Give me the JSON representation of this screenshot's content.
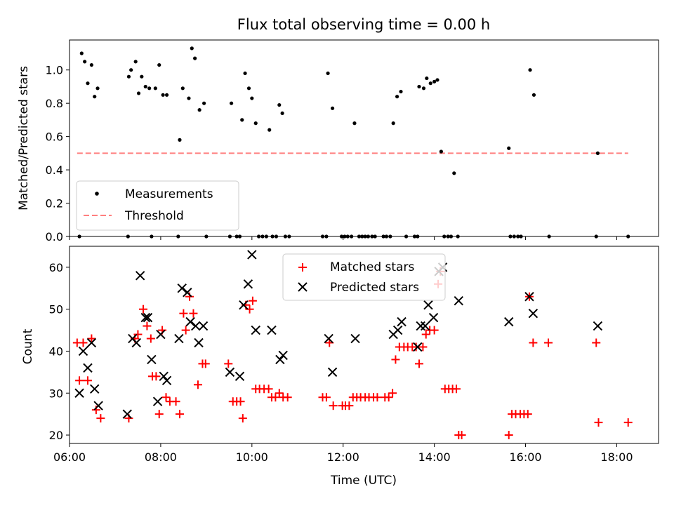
{
  "figure": {
    "title": "Flux total observing time = 0.00 h",
    "xlabel": "Time (UTC)"
  },
  "colors": {
    "measurement": "#000000",
    "threshold": "#ff7f7f",
    "matched": "#ff0000",
    "predicted": "#000000"
  },
  "chart_data": [
    {
      "type": "scatter",
      "panel": "top",
      "ylabel": "Matched/Predicted stars",
      "xlim": [
        "06:00",
        "18:55"
      ],
      "ylim": [
        0,
        1.18
      ],
      "xticks": [
        "06:00",
        "08:00",
        "10:00",
        "12:00",
        "14:00",
        "16:00",
        "18:00"
      ],
      "yticks": [
        0.0,
        0.2,
        0.4,
        0.6,
        0.8,
        1.0
      ],
      "ytick_labels": [
        "0.0",
        "0.2",
        "0.4",
        "0.6",
        "0.8",
        "1.0"
      ],
      "legend": {
        "placement": "lower-left",
        "entries": [
          "Measurements",
          "Threshold"
        ]
      },
      "threshold": {
        "name": "Threshold",
        "y": 0.5,
        "x": [
          "06:10",
          "18:15"
        ]
      },
      "series": [
        {
          "name": "Measurements",
          "points": [
            [
              "06:13",
              0.0
            ],
            [
              "06:16",
              1.1
            ],
            [
              "06:20",
              1.05
            ],
            [
              "06:24",
              0.92
            ],
            [
              "06:29",
              1.03
            ],
            [
              "06:33",
              0.84
            ],
            [
              "06:37",
              0.89
            ],
            [
              "07:17",
              0.0
            ],
            [
              "07:18",
              0.96
            ],
            [
              "07:21",
              1.0
            ],
            [
              "07:27",
              1.05
            ],
            [
              "07:31",
              0.86
            ],
            [
              "07:35",
              0.96
            ],
            [
              "07:40",
              0.9
            ],
            [
              "07:45",
              0.89
            ],
            [
              "07:48",
              0.0
            ],
            [
              "07:53",
              0.89
            ],
            [
              "07:58",
              1.03
            ],
            [
              "08:03",
              0.85
            ],
            [
              "08:08",
              0.85
            ],
            [
              "08:23",
              0.0
            ],
            [
              "08:25",
              0.58
            ],
            [
              "08:29",
              0.89
            ],
            [
              "08:37",
              0.83
            ],
            [
              "08:41",
              1.13
            ],
            [
              "08:45",
              1.07
            ],
            [
              "08:51",
              0.76
            ],
            [
              "08:57",
              0.8
            ],
            [
              "09:00",
              0.0
            ],
            [
              "09:31",
              0.0
            ],
            [
              "09:33",
              0.8
            ],
            [
              "09:40",
              0.0
            ],
            [
              "09:44",
              0.0
            ],
            [
              "09:47",
              0.7
            ],
            [
              "09:51",
              0.98
            ],
            [
              "09:56",
              0.89
            ],
            [
              "10:00",
              0.83
            ],
            [
              "10:05",
              0.68
            ],
            [
              "10:09",
              0.0
            ],
            [
              "10:14",
              0.0
            ],
            [
              "10:19",
              0.0
            ],
            [
              "10:23",
              0.64
            ],
            [
              "10:27",
              0.0
            ],
            [
              "10:32",
              0.0
            ],
            [
              "10:36",
              0.79
            ],
            [
              "10:40",
              0.74
            ],
            [
              "10:44",
              0.0
            ],
            [
              "10:49",
              0.0
            ],
            [
              "11:33",
              0.0
            ],
            [
              "11:38",
              0.0
            ],
            [
              "11:40",
              0.98
            ],
            [
              "11:46",
              0.77
            ],
            [
              "11:58",
              0.0
            ],
            [
              "12:02",
              0.0
            ],
            [
              "12:06",
              0.0
            ],
            [
              "12:11",
              0.0
            ],
            [
              "12:15",
              0.68
            ],
            [
              "12:21",
              0.0
            ],
            [
              "12:25",
              0.0
            ],
            [
              "12:29",
              0.0
            ],
            [
              "12:33",
              0.0
            ],
            [
              "12:38",
              0.0
            ],
            [
              "12:42",
              0.0
            ],
            [
              "12:53",
              0.0
            ],
            [
              "12:57",
              0.0
            ],
            [
              "13:02",
              0.0
            ],
            [
              "13:06",
              0.68
            ],
            [
              "13:11",
              0.84
            ],
            [
              "13:16",
              0.87
            ],
            [
              "13:23",
              0.0
            ],
            [
              "13:34",
              0.0
            ],
            [
              "13:38",
              0.0
            ],
            [
              "13:40",
              0.9
            ],
            [
              "13:46",
              0.89
            ],
            [
              "13:50",
              0.95
            ],
            [
              "13:55",
              0.92
            ],
            [
              "14:00",
              0.93
            ],
            [
              "14:04",
              0.94
            ],
            [
              "14:09",
              0.51
            ],
            [
              "14:13",
              0.0
            ],
            [
              "14:18",
              0.0
            ],
            [
              "14:22",
              0.0
            ],
            [
              "14:26",
              0.38
            ],
            [
              "14:31",
              0.0
            ],
            [
              "15:38",
              0.53
            ],
            [
              "15:40",
              0.0
            ],
            [
              "15:45",
              0.0
            ],
            [
              "15:50",
              0.0
            ],
            [
              "15:54",
              0.0
            ],
            [
              "16:06",
              1.0
            ],
            [
              "16:11",
              0.85
            ],
            [
              "16:31",
              0.0
            ],
            [
              "17:33",
              0.0
            ],
            [
              "17:35",
              0.5
            ],
            [
              "18:15",
              0.0
            ]
          ]
        }
      ]
    },
    {
      "type": "scatter",
      "panel": "bottom",
      "ylabel": "Count",
      "xlabel": "Time (UTC)",
      "xlim": [
        "06:00",
        "18:55"
      ],
      "ylim": [
        18,
        65
      ],
      "xticks": [
        "06:00",
        "08:00",
        "10:00",
        "12:00",
        "14:00",
        "16:00",
        "18:00"
      ],
      "xtick_labels": [
        "06:00",
        "08:00",
        "10:00",
        "12:00",
        "14:00",
        "16:00",
        "18:00"
      ],
      "yticks": [
        20,
        30,
        40,
        50,
        60
      ],
      "ytick_labels": [
        "20",
        "30",
        "40",
        "50",
        "60"
      ],
      "legend": {
        "placement": "upper-center",
        "entries": [
          "Matched stars",
          "Predicted stars"
        ]
      },
      "series": [
        {
          "name": "Matched stars",
          "marker": "+",
          "points": [
            [
              "06:10",
              42
            ],
            [
              "06:13",
              33
            ],
            [
              "06:18",
              42
            ],
            [
              "06:24",
              33
            ],
            [
              "06:29",
              43
            ],
            [
              "06:35",
              26
            ],
            [
              "06:41",
              24
            ],
            [
              "07:18",
              24
            ],
            [
              "07:26",
              43
            ],
            [
              "07:30",
              44
            ],
            [
              "07:37",
              50
            ],
            [
              "07:42",
              46
            ],
            [
              "07:47",
              43
            ],
            [
              "07:49",
              34
            ],
            [
              "07:54",
              34
            ],
            [
              "07:58",
              25
            ],
            [
              "08:02",
              45
            ],
            [
              "08:07",
              29
            ],
            [
              "08:12",
              28
            ],
            [
              "08:20",
              28
            ],
            [
              "08:25",
              25
            ],
            [
              "08:30",
              49
            ],
            [
              "08:33",
              45
            ],
            [
              "08:38",
              53
            ],
            [
              "08:43",
              49
            ],
            [
              "08:49",
              32
            ],
            [
              "08:55",
              37
            ],
            [
              "08:59",
              37
            ],
            [
              "09:29",
              37
            ],
            [
              "09:35",
              28
            ],
            [
              "09:40",
              28
            ],
            [
              "09:45",
              28
            ],
            [
              "09:48",
              24
            ],
            [
              "09:52",
              51
            ],
            [
              "09:57",
              50
            ],
            [
              "10:01",
              52
            ],
            [
              "10:05",
              31
            ],
            [
              "10:10",
              31
            ],
            [
              "10:16",
              31
            ],
            [
              "10:22",
              31
            ],
            [
              "10:26",
              29
            ],
            [
              "10:31",
              29
            ],
            [
              "10:36",
              30
            ],
            [
              "10:41",
              29
            ],
            [
              "10:47",
              29
            ],
            [
              "11:33",
              29
            ],
            [
              "11:38",
              29
            ],
            [
              "11:42",
              42
            ],
            [
              "11:47",
              27
            ],
            [
              "11:59",
              27
            ],
            [
              "12:03",
              27
            ],
            [
              "12:08",
              27
            ],
            [
              "12:13",
              29
            ],
            [
              "12:18",
              29
            ],
            [
              "12:23",
              29
            ],
            [
              "12:29",
              29
            ],
            [
              "12:34",
              29
            ],
            [
              "12:40",
              29
            ],
            [
              "12:45",
              29
            ],
            [
              "12:55",
              29
            ],
            [
              "13:00",
              29
            ],
            [
              "13:05",
              30
            ],
            [
              "13:09",
              38
            ],
            [
              "13:14",
              41
            ],
            [
              "13:20",
              41
            ],
            [
              "13:25",
              41
            ],
            [
              "13:31",
              41
            ],
            [
              "13:36",
              41
            ],
            [
              "13:40",
              37
            ],
            [
              "13:45",
              41
            ],
            [
              "13:49",
              44
            ],
            [
              "13:54",
              45
            ],
            [
              "14:00",
              45
            ],
            [
              "14:05",
              56
            ],
            [
              "14:08",
              59
            ],
            [
              "14:14",
              31
            ],
            [
              "14:19",
              31
            ],
            [
              "14:24",
              31
            ],
            [
              "14:29",
              31
            ],
            [
              "14:32",
              20
            ],
            [
              "14:36",
              20
            ],
            [
              "15:38",
              20
            ],
            [
              "15:42",
              25
            ],
            [
              "15:47",
              25
            ],
            [
              "15:53",
              25
            ],
            [
              "15:58",
              25
            ],
            [
              "16:03",
              25
            ],
            [
              "16:05",
              53
            ],
            [
              "16:10",
              42
            ],
            [
              "16:30",
              42
            ],
            [
              "17:33",
              42
            ],
            [
              "17:36",
              23
            ],
            [
              "18:15",
              23
            ]
          ]
        },
        {
          "name": "Predicted stars",
          "marker": "x",
          "points": [
            [
              "06:13",
              30
            ],
            [
              "06:18",
              40
            ],
            [
              "06:24",
              36
            ],
            [
              "06:29",
              42
            ],
            [
              "06:33",
              31
            ],
            [
              "06:38",
              27
            ],
            [
              "07:16",
              25
            ],
            [
              "07:23",
              43
            ],
            [
              "07:28",
              42
            ],
            [
              "07:33",
              58
            ],
            [
              "07:40",
              48
            ],
            [
              "07:43",
              48
            ],
            [
              "07:48",
              38
            ],
            [
              "07:56",
              28
            ],
            [
              "08:00",
              44
            ],
            [
              "08:04",
              34
            ],
            [
              "08:08",
              33
            ],
            [
              "08:24",
              43
            ],
            [
              "08:28",
              55
            ],
            [
              "08:35",
              54
            ],
            [
              "08:39",
              47
            ],
            [
              "08:46",
              46
            ],
            [
              "08:50",
              42
            ],
            [
              "08:56",
              46
            ],
            [
              "09:31",
              35
            ],
            [
              "09:44",
              34
            ],
            [
              "09:49",
              51
            ],
            [
              "09:55",
              56
            ],
            [
              "10:00",
              63
            ],
            [
              "10:05",
              45
            ],
            [
              "10:26",
              45
            ],
            [
              "10:37",
              38
            ],
            [
              "10:41",
              39
            ],
            [
              "11:41",
              43
            ],
            [
              "11:46",
              35
            ],
            [
              "12:16",
              43
            ],
            [
              "13:06",
              44
            ],
            [
              "13:12",
              45
            ],
            [
              "13:17",
              47
            ],
            [
              "13:38",
              41
            ],
            [
              "13:42",
              46
            ],
            [
              "13:48",
              46
            ],
            [
              "13:52",
              51
            ],
            [
              "13:59",
              48
            ],
            [
              "14:06",
              59
            ],
            [
              "14:11",
              60
            ],
            [
              "14:32",
              52
            ],
            [
              "15:38",
              47
            ],
            [
              "16:05",
              53
            ],
            [
              "16:10",
              49
            ],
            [
              "17:35",
              46
            ]
          ]
        }
      ]
    }
  ]
}
